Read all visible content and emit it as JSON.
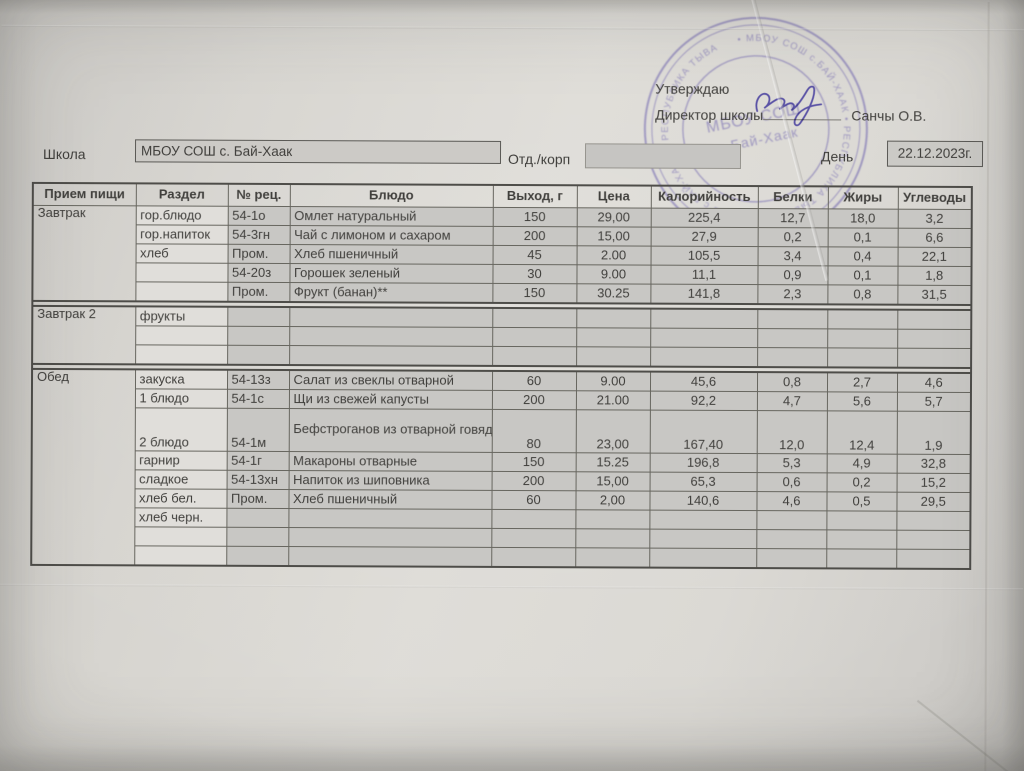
{
  "document": {
    "approval": {
      "line1": "Утверждаю",
      "line2": "Директор школы",
      "approver_name": "Санчы О.В."
    },
    "stamp": {
      "center_line1": "МБОУ СОШ",
      "center_line2": "с.Бай-Хаак",
      "ring_text": "• МБОУ СОШ с.БАЙ-ХААК • РЕСПУБЛИКА ТЫВА • МБОУ СОШ с.БАЙ-ХААК • РЕСПУБЛИКА ТЫВА",
      "color": "#6c61ae"
    },
    "form": {
      "school_label": "Школа",
      "school_value": "МБОУ СОШ с. Бай-Хаак",
      "dept_label": "Отд./корп",
      "dept_value": "",
      "day_label": "День",
      "date_value": "22.12.2023г."
    }
  },
  "table": {
    "headers": [
      "Прием пищи",
      "Раздел",
      "№ рец.",
      "Блюдо",
      "Выход, г",
      "Цена",
      "Калорийность",
      "Белки",
      "Жиры",
      "Углеводы"
    ],
    "rows": [
      {
        "meal": "Завтрак",
        "meal_span": 5,
        "section_start": true,
        "section": "гор.блюдо",
        "rec": "54-1о",
        "dish": "Омлет натуральный",
        "out": "150",
        "price": "29,00",
        "cal": "225,4",
        "prot": "12,7",
        "fat": "18,0",
        "carb": "3,2"
      },
      {
        "section": "гор.напиток",
        "rec": "54-3гн",
        "dish": "Чай с лимоном и сахаром",
        "out": "200",
        "price": "15,00",
        "cal": "27,9",
        "prot": "0,2",
        "fat": "0,1",
        "carb": "6,6"
      },
      {
        "section": "хлеб",
        "rec": "Пром.",
        "dish": "Хлеб пшеничный",
        "out": "45",
        "price": "2.00",
        "cal": "105,5",
        "prot": "3,4",
        "fat": "0,4",
        "carb": "22,1"
      },
      {
        "section": "",
        "rec": "54-20з",
        "dish": "Горошек зеленый",
        "out": "30",
        "price": "9.00",
        "cal": "11,1",
        "prot": "0,9",
        "fat": "0,1",
        "carb": "1,8"
      },
      {
        "section": "",
        "rec": "Пром.",
        "dish": "Фрукт (банан)**",
        "out": "150",
        "price": "30.25",
        "cal": "141,8",
        "prot": "2,3",
        "fat": "0,8",
        "carb": "31,5"
      },
      {
        "meal": "Завтрак 2",
        "meal_span": 3,
        "section_start": true,
        "section": "фрукты",
        "rec": "",
        "dish": "",
        "out": "",
        "price": "",
        "cal": "",
        "prot": "",
        "fat": "",
        "carb": ""
      },
      {
        "section": "",
        "rec": "",
        "dish": "",
        "out": "",
        "price": "",
        "cal": "",
        "prot": "",
        "fat": "",
        "carb": ""
      },
      {
        "section": "",
        "rec": "",
        "dish": "",
        "out": "",
        "price": "",
        "cal": "",
        "prot": "",
        "fat": "",
        "carb": ""
      },
      {
        "meal": "Обед",
        "meal_span": 9,
        "section_start": true,
        "section": "закуска",
        "rec": "54-13з",
        "dish": "Салат из свеклы отварной",
        "out": "60",
        "price": "9.00",
        "cal": "45,6",
        "prot": "0,8",
        "fat": "2,7",
        "carb": "4,6"
      },
      {
        "section": "1 блюдо",
        "rec": "54-1с",
        "dish": "Щи из свежей капусты",
        "out": "200",
        "price": "21.00",
        "cal": "92,2",
        "prot": "4,7",
        "fat": "5,6",
        "carb": "5,7"
      },
      {
        "section": "2 блюдо",
        "rec": "54-1м",
        "dish": "Бефстроганов из отварной говядины",
        "out": "80",
        "price": "23,00",
        "cal": "167,40",
        "prot": "12,0",
        "fat": "12,4",
        "carb": "1,9",
        "tall": true
      },
      {
        "section": "гарнир",
        "rec": "54-1г",
        "dish": "Макароны отварные",
        "out": "150",
        "price": "15.25",
        "cal": "196,8",
        "prot": "5,3",
        "fat": "4,9",
        "carb": "32,8"
      },
      {
        "section": "сладкое",
        "rec": "54-13хн",
        "dish": "Напиток из шиповника",
        "out": "200",
        "price": "15,00",
        "cal": "65,3",
        "prot": "0,6",
        "fat": "0,2",
        "carb": "15,2"
      },
      {
        "section": "хлеб бел.",
        "rec": "Пром.",
        "dish": "Хлеб пшеничный",
        "out": "60",
        "price": "2,00",
        "cal": "140,6",
        "prot": "4,6",
        "fat": "0,5",
        "carb": "29,5"
      },
      {
        "section": "хлеб черн.",
        "rec": "",
        "dish": "",
        "out": "",
        "price": "",
        "cal": "",
        "prot": "",
        "fat": "",
        "carb": ""
      },
      {
        "section": "",
        "rec": "",
        "dish": "",
        "out": "",
        "price": "",
        "cal": "",
        "prot": "",
        "fat": "",
        "carb": ""
      },
      {
        "section": "",
        "rec": "",
        "dish": "",
        "out": "",
        "price": "",
        "cal": "",
        "prot": "",
        "fat": "",
        "carb": ""
      }
    ]
  }
}
